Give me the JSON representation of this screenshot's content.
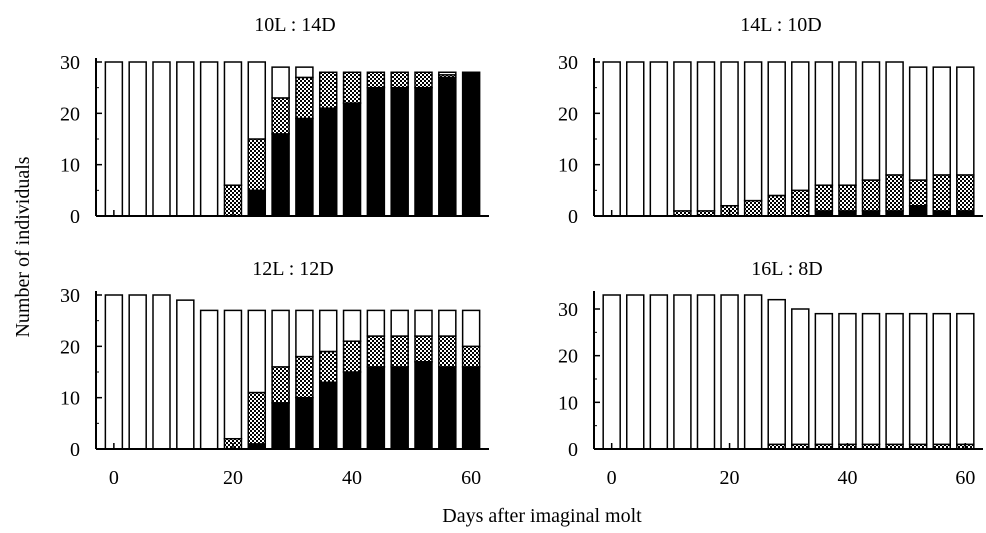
{
  "figure": {
    "ylabel": "Number of individuals",
    "xlabel": "Days after imaginal molt"
  },
  "colors": {
    "background": "#ffffff",
    "bar_outline": "#000000",
    "open_segment": "#ffffff",
    "checkered_segment": "checkerboard black/white",
    "solid_segment": "#000000"
  },
  "chart_data": [
    {
      "type": "bar",
      "stacked": true,
      "title": "10L : 14D",
      "x": [
        0,
        4,
        8,
        12,
        16,
        20,
        24,
        28,
        32,
        36,
        40,
        44,
        48,
        52,
        56,
        60
      ],
      "series": [
        {
          "key": "solid",
          "values": [
            0,
            0,
            0,
            0,
            0,
            0,
            5,
            16,
            19,
            21,
            22,
            25,
            25,
            25,
            27,
            28
          ]
        },
        {
          "key": "checkered",
          "values": [
            0,
            0,
            0,
            0,
            0,
            6,
            10,
            7,
            8,
            7,
            6,
            3,
            3,
            3,
            0.5,
            0
          ]
        },
        {
          "key": "open",
          "values": [
            30,
            30,
            30,
            30,
            30,
            24,
            15,
            6,
            2,
            0,
            0,
            0,
            0,
            0,
            0.5,
            0
          ]
        }
      ],
      "xticks": [
        0,
        20,
        40,
        60
      ],
      "yticks": [
        0,
        10,
        20,
        30
      ],
      "xlim": [
        -3,
        63
      ],
      "ylim": [
        0,
        30
      ],
      "show_xtick_labels": false
    },
    {
      "type": "bar",
      "stacked": true,
      "title": "14L : 10D",
      "x": [
        0,
        4,
        8,
        12,
        16,
        20,
        24,
        28,
        32,
        36,
        40,
        44,
        48,
        52,
        56,
        60
      ],
      "series": [
        {
          "key": "solid",
          "values": [
            0,
            0,
            0,
            0,
            0,
            0,
            0,
            0,
            0,
            1,
            1,
            1,
            1,
            2,
            1,
            1
          ]
        },
        {
          "key": "checkered",
          "values": [
            0,
            0,
            0,
            1,
            1,
            2,
            3,
            4,
            5,
            5,
            5,
            6,
            7,
            5,
            7,
            7
          ]
        },
        {
          "key": "open",
          "values": [
            30,
            30,
            30,
            29,
            29,
            28,
            27,
            26,
            25,
            24,
            24,
            23,
            22,
            22,
            21,
            21
          ]
        }
      ],
      "xticks": [
        0,
        20,
        40,
        60
      ],
      "yticks": [
        0,
        10,
        20,
        30
      ],
      "xlim": [
        -3,
        63
      ],
      "ylim": [
        0,
        30
      ],
      "show_xtick_labels": false
    },
    {
      "type": "bar",
      "stacked": true,
      "title": "12L : 12D",
      "x": [
        0,
        4,
        8,
        12,
        16,
        20,
        24,
        28,
        32,
        36,
        40,
        44,
        48,
        52,
        56,
        60
      ],
      "series": [
        {
          "key": "solid",
          "values": [
            0,
            0,
            0,
            0,
            0,
            0,
            1,
            9,
            10,
            13,
            15,
            16,
            16,
            17,
            16,
            16
          ]
        },
        {
          "key": "checkered",
          "values": [
            0,
            0,
            0,
            0,
            0,
            2,
            10,
            7,
            8,
            6,
            6,
            6,
            6,
            5,
            6,
            4
          ]
        },
        {
          "key": "open",
          "values": [
            30,
            30,
            30,
            29,
            27,
            25,
            16,
            11,
            9,
            8,
            6,
            5,
            5,
            5,
            5,
            7
          ]
        }
      ],
      "xticks": [
        0,
        20,
        40,
        60
      ],
      "yticks": [
        0,
        10,
        20,
        30
      ],
      "xlim": [
        -3,
        63
      ],
      "ylim": [
        0,
        30
      ],
      "show_xtick_labels": true
    },
    {
      "type": "bar",
      "stacked": true,
      "title": "16L : 8D",
      "x": [
        0,
        4,
        8,
        12,
        16,
        20,
        24,
        28,
        32,
        36,
        40,
        44,
        48,
        52,
        56,
        60
      ],
      "series": [
        {
          "key": "solid",
          "values": [
            0,
            0,
            0,
            0,
            0,
            0,
            0,
            0,
            0,
            0,
            0,
            0,
            0,
            0,
            0,
            0
          ]
        },
        {
          "key": "checkered",
          "values": [
            0,
            0,
            0,
            0,
            0,
            0,
            0,
            1,
            1,
            1,
            1,
            1,
            1,
            1,
            1,
            1
          ]
        },
        {
          "key": "open",
          "values": [
            33,
            33,
            33,
            33,
            33,
            33,
            33,
            31,
            29,
            28,
            28,
            28,
            28,
            28,
            28,
            28
          ]
        }
      ],
      "xticks": [
        0,
        20,
        40,
        60
      ],
      "yticks": [
        0,
        10,
        20,
        30
      ],
      "xlim": [
        -3,
        63
      ],
      "ylim": [
        0,
        33
      ],
      "show_xtick_labels": true
    }
  ]
}
